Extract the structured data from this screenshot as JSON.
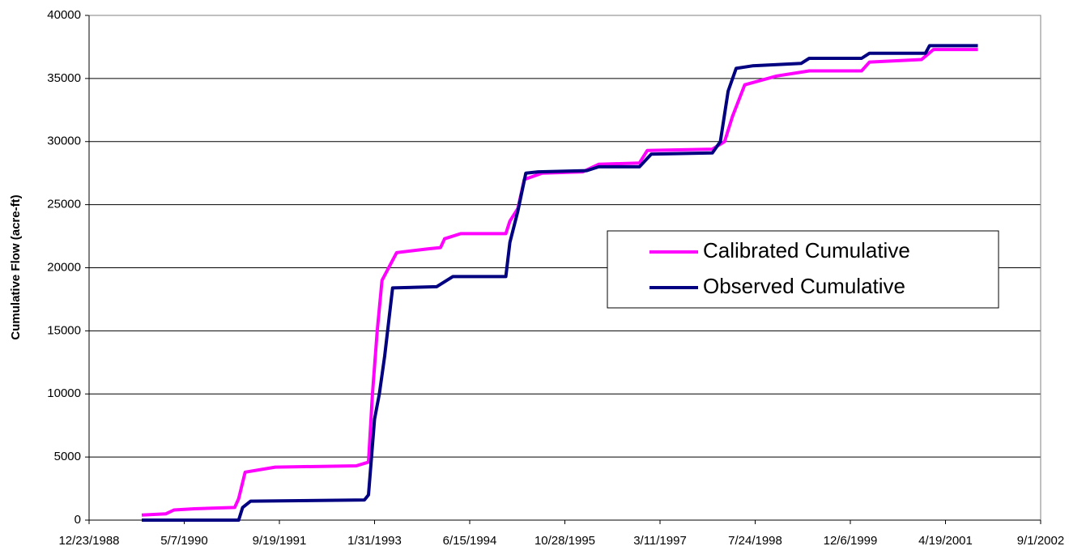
{
  "chart_data": {
    "type": "line",
    "ylabel": "Cumulative Flow  (acre-ft)",
    "ylim": [
      0,
      40000
    ],
    "yticks": [
      0,
      5000,
      10000,
      15000,
      20000,
      25000,
      30000,
      35000,
      40000
    ],
    "xlim": [
      "12/23/1988",
      "9/1/2002"
    ],
    "xticks": [
      "12/23/1988",
      "5/7/1990",
      "9/19/1991",
      "1/31/1993",
      "6/15/1994",
      "10/28/1995",
      "3/11/1997",
      "7/24/1998",
      "12/6/1999",
      "4/19/2001",
      "9/1/2002"
    ],
    "grid": true,
    "legend": "right",
    "series": [
      {
        "name": "Calibrated Cumulative",
        "color": "#ff00ff",
        "x": [
          "9/26/1989",
          "1/31/1990",
          "3/14/1990",
          "6/29/1990",
          "1/27/1991",
          "2/17/1991",
          "3/23/1991",
          "8/28/1991",
          "10/27/1992",
          "12/30/1992",
          "1/20/1993",
          "2/14/1993",
          "3/11/1993",
          "5/27/1993",
          "11/11/1993",
          "1/13/1994",
          "2/3/1994",
          "4/29/1994",
          "12/22/1994",
          "1/12/1995",
          "2/23/1995",
          "3/29/1995",
          "7/1/1995",
          "1/30/1996",
          "4/23/1996",
          "11/23/1996",
          "1/3/1997",
          "12/11/1997",
          "2/13/1998",
          "3/27/1998",
          "5/30/1998",
          "11/14/1998",
          "5/4/1999",
          "2/3/2000",
          "3/16/2000",
          "12/14/2000",
          "2/15/2001",
          "10/6/2001"
        ],
        "values": [
          400,
          500,
          800,
          900,
          1000,
          1700,
          3800,
          4200,
          4300,
          4600,
          10000,
          15000,
          19000,
          21200,
          21500,
          21600,
          22300,
          22700,
          22700,
          23700,
          24700,
          27000,
          27500,
          27600,
          28200,
          28300,
          29300,
          29400,
          30000,
          32000,
          34500,
          35200,
          35600,
          35600,
          36300,
          36500,
          37300,
          37300
        ]
      },
      {
        "name": "Observed Cumulative",
        "color": "#000080",
        "x": [
          "9/26/1989",
          "2/17/1991",
          "3/10/1991",
          "4/21/1991",
          "12/9/1992",
          "12/30/1992",
          "1/31/1993",
          "2/25/1993",
          "3/25/1993",
          "5/6/1993",
          "12/23/1993",
          "3/18/1994",
          "12/22/1994",
          "1/12/1995",
          "2/23/1995",
          "4/6/1995",
          "6/10/1995",
          "2/20/1996",
          "4/23/1996",
          "11/23/1996",
          "1/24/1997",
          "12/11/1997",
          "1/22/1998",
          "3/4/1998",
          "4/15/1998",
          "7/9/1998",
          "3/23/1999",
          "5/4/1999",
          "2/3/2000",
          "3/16/2000",
          "1/4/2001",
          "1/25/2001",
          "10/6/2001"
        ],
        "values": [
          0,
          0,
          1000,
          1500,
          1600,
          2000,
          8000,
          10000,
          13000,
          18400,
          18500,
          19300,
          19300,
          22000,
          24500,
          27500,
          27600,
          27700,
          28000,
          28000,
          29000,
          29100,
          30000,
          34000,
          35800,
          36000,
          36200,
          36600,
          36600,
          37000,
          37000,
          37600,
          37600
        ]
      }
    ]
  }
}
